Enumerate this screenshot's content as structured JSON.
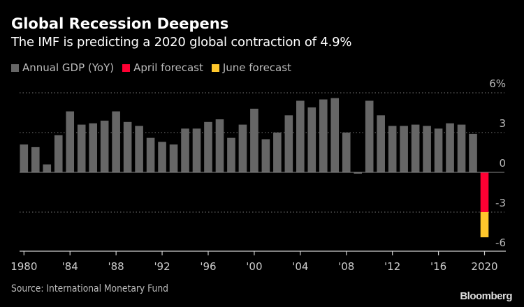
{
  "chart_data": {
    "type": "bar",
    "title": "Global Recession Deepens",
    "subtitle": "The IMF is predicting a 2020 global contraction of 4.9%",
    "source": "Source: International Monetary Fund",
    "branding": "Bloomberg",
    "xlabel": "",
    "ylabel": "",
    "ylim": [
      -6,
      6
    ],
    "y_ticks": [
      {
        "value": 6,
        "label": "6%"
      },
      {
        "value": 3,
        "label": "3"
      },
      {
        "value": 0,
        "label": "0"
      },
      {
        "value": -3,
        "label": "-3"
      },
      {
        "value": -6,
        "label": "-6"
      }
    ],
    "x_ticks": [
      {
        "year": 1980,
        "label": "1980"
      },
      {
        "year": 1984,
        "label": "'84"
      },
      {
        "year": 1988,
        "label": "'88"
      },
      {
        "year": 1992,
        "label": "'92"
      },
      {
        "year": 1996,
        "label": "'96"
      },
      {
        "year": 2000,
        "label": "'00"
      },
      {
        "year": 2004,
        "label": "'04"
      },
      {
        "year": 2008,
        "label": "'08"
      },
      {
        "year": 2012,
        "label": "'12"
      },
      {
        "year": 2016,
        "label": "'16"
      },
      {
        "year": 2020,
        "label": "2020"
      }
    ],
    "grid": "horizontal dotted",
    "legend_position": "top-left",
    "series": [
      {
        "name": "Annual GDP (YoY)",
        "color": "#666666",
        "x": [
          1980,
          1981,
          1982,
          1983,
          1984,
          1985,
          1986,
          1987,
          1988,
          1989,
          1990,
          1991,
          1992,
          1993,
          1994,
          1995,
          1996,
          1997,
          1998,
          1999,
          2000,
          2001,
          2002,
          2003,
          2004,
          2005,
          2006,
          2007,
          2008,
          2009,
          2010,
          2011,
          2012,
          2013,
          2014,
          2015,
          2016,
          2017,
          2018,
          2019
        ],
        "values": [
          2.1,
          1.9,
          0.6,
          2.8,
          4.6,
          3.6,
          3.7,
          3.9,
          4.6,
          3.8,
          3.5,
          2.6,
          2.3,
          2.1,
          3.3,
          3.3,
          3.8,
          4.0,
          2.6,
          3.6,
          4.8,
          2.5,
          3.0,
          4.3,
          5.4,
          4.9,
          5.5,
          5.6,
          3.0,
          -0.1,
          5.4,
          4.3,
          3.5,
          3.5,
          3.6,
          3.5,
          3.3,
          3.7,
          3.6,
          2.9
        ]
      },
      {
        "name": "April forecast",
        "color": "#ff0033",
        "x": [
          2020
        ],
        "values": [
          -3.0
        ]
      },
      {
        "name": "June forecast",
        "color": "#ffc72c",
        "x": [
          2020
        ],
        "values": [
          -4.9
        ]
      }
    ]
  }
}
